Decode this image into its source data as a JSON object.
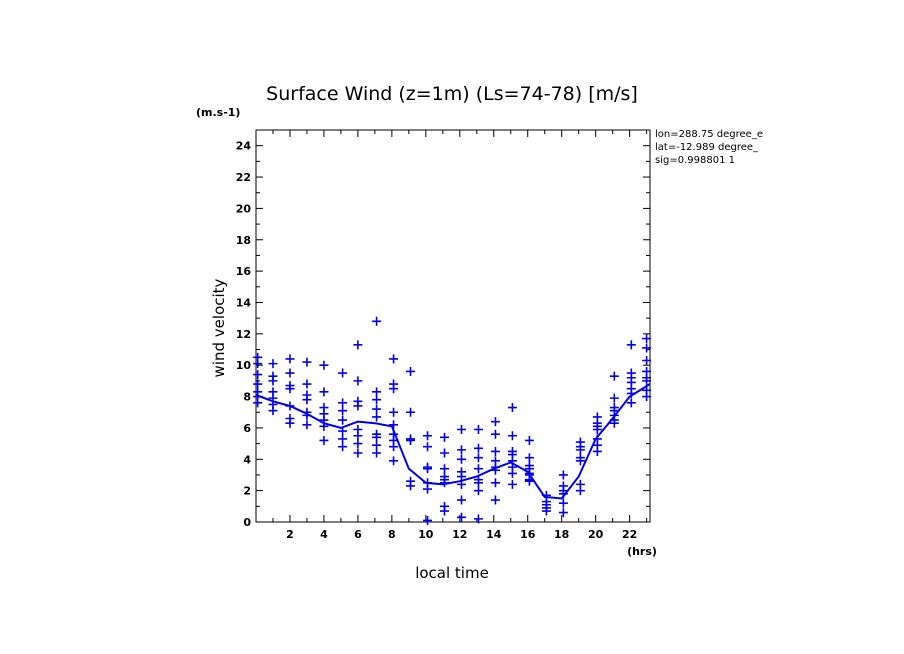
{
  "chart_data": {
    "type": "scatter",
    "title": "Surface Wind (z=1m) (Ls=74-78) [m/s]",
    "units_label": "(m.s-1)",
    "xlabel": "local time",
    "xunit": "(hrs)",
    "ylabel": "wind velocity",
    "xlim": [
      0,
      23.2
    ],
    "ylim": [
      0,
      25
    ],
    "xticks": [
      2,
      4,
      6,
      8,
      10,
      12,
      14,
      16,
      18,
      20,
      22
    ],
    "yticks": [
      0,
      2,
      4,
      6,
      8,
      10,
      12,
      14,
      16,
      18,
      20,
      22,
      24
    ],
    "grid": false,
    "info": [
      "lon=288.75 degree_e",
      "lat=-12.989 degree_",
      "sig=0.998801 1"
    ],
    "mean_line": {
      "x": [
        0,
        1,
        2,
        3,
        4,
        5,
        6,
        7,
        8,
        9,
        10,
        11,
        12,
        13,
        14,
        15,
        16,
        17,
        18,
        19,
        20,
        21,
        22,
        23.2
      ],
      "y": [
        8.1,
        7.7,
        7.4,
        6.9,
        6.3,
        6.0,
        6.4,
        6.3,
        6.1,
        3.4,
        2.5,
        2.4,
        2.6,
        2.9,
        3.4,
        3.8,
        3.2,
        1.6,
        1.5,
        2.9,
        5.3,
        6.6,
        8.0,
        8.8
      ]
    },
    "points": [
      {
        "x": 0.1,
        "y": [
          10.5,
          10.1,
          9.4,
          8.8,
          8.3,
          8.0,
          7.6
        ]
      },
      {
        "x": 1.0,
        "y": [
          10.1,
          9.3,
          9.0,
          8.3,
          7.9,
          7.5,
          7.1
        ]
      },
      {
        "x": 2.0,
        "y": [
          10.4,
          9.5,
          8.7,
          8.5,
          7.4,
          6.6,
          6.3
        ]
      },
      {
        "x": 3.0,
        "y": [
          10.2,
          8.8,
          8.1,
          7.8,
          7.0,
          6.8,
          6.2
        ]
      },
      {
        "x": 4.0,
        "y": [
          10.0,
          8.3,
          7.3,
          6.9,
          6.5,
          6.1,
          5.2
        ]
      },
      {
        "x": 5.1,
        "y": [
          9.5,
          7.6,
          7.1,
          6.5,
          5.8,
          5.3,
          4.8
        ]
      },
      {
        "x": 6.0,
        "y": [
          11.3,
          9.0,
          7.7,
          7.4,
          5.9,
          5.5,
          5.0,
          4.4
        ]
      },
      {
        "x": 7.1,
        "y": [
          12.8,
          8.3,
          7.8,
          7.2,
          6.7,
          5.6,
          5.4,
          4.9,
          4.4
        ]
      },
      {
        "x": 8.1,
        "y": [
          10.4,
          8.8,
          8.5,
          7.0,
          6.2,
          5.6,
          5.2,
          4.8,
          3.9
        ]
      },
      {
        "x": 9.1,
        "y": [
          9.6,
          7.0,
          5.3,
          5.2,
          2.6,
          2.3
        ]
      },
      {
        "x": 10.1,
        "y": [
          5.5,
          4.8,
          3.5,
          3.4,
          2.5,
          2.1,
          0.1
        ]
      },
      {
        "x": 11.1,
        "y": [
          5.4,
          4.4,
          3.4,
          2.9,
          2.7,
          2.5,
          1.0,
          0.7
        ]
      },
      {
        "x": 12.1,
        "y": [
          5.9,
          4.6,
          4.0,
          3.2,
          2.9,
          2.4,
          1.4,
          0.3
        ]
      },
      {
        "x": 13.1,
        "y": [
          5.9,
          4.7,
          4.1,
          3.4,
          2.7,
          2.5,
          2.0,
          0.2
        ]
      },
      {
        "x": 14.1,
        "y": [
          6.4,
          5.6,
          4.5,
          3.9,
          3.5,
          3.3,
          2.5,
          1.4
        ]
      },
      {
        "x": 15.1,
        "y": [
          7.3,
          5.5,
          4.5,
          4.3,
          3.9,
          3.5,
          3.1,
          2.4
        ]
      },
      {
        "x": 16.1,
        "y": [
          5.2,
          4.1,
          3.6,
          3.4,
          3.1,
          3.0,
          2.7,
          2.6
        ]
      },
      {
        "x": 17.1,
        "y": [
          1.7,
          1.3,
          1.1,
          0.9,
          0.7
        ]
      },
      {
        "x": 18.1,
        "y": [
          3.0,
          2.3,
          2.0,
          1.8,
          1.2,
          0.6
        ]
      },
      {
        "x": 19.1,
        "y": [
          5.1,
          4.8,
          4.6,
          4.1,
          3.9,
          2.4,
          2.0
        ]
      },
      {
        "x": 20.1,
        "y": [
          6.7,
          6.3,
          6.1,
          5.9,
          5.3,
          4.9,
          4.5
        ]
      },
      {
        "x": 21.1,
        "y": [
          9.3,
          7.9,
          7.3,
          7.1,
          6.8,
          6.5,
          6.3
        ]
      },
      {
        "x": 22.1,
        "y": [
          11.3,
          9.5,
          9.2,
          8.9,
          8.5,
          8.2,
          7.6
        ]
      },
      {
        "x": 23.0,
        "y": [
          11.7,
          11.1,
          10.3,
          9.6,
          9.2,
          9.0,
          8.4,
          8.0
        ]
      }
    ]
  }
}
